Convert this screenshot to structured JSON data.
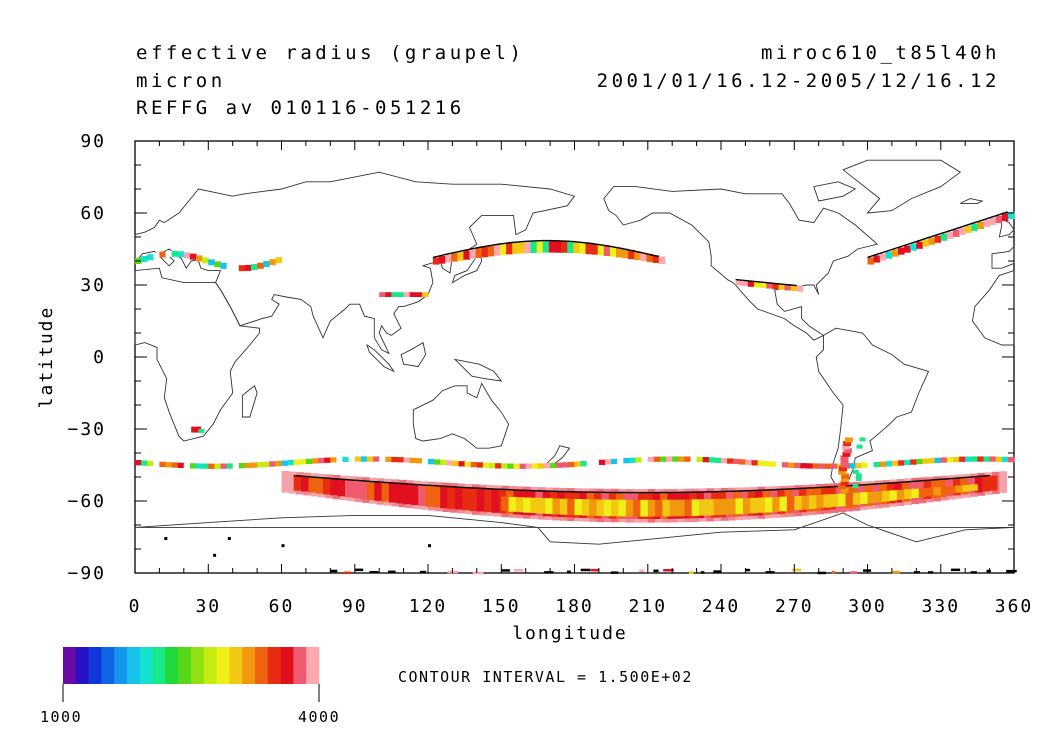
{
  "header": {
    "left": [
      "effective radius (graupel)",
      "micron",
      "REFFG av 010116-051216"
    ],
    "right": [
      "miroc610_t85l40h",
      "2001/01/16.12-2005/12/16.12"
    ]
  },
  "chart_data": {
    "type": "heatmap",
    "projection": "cylindrical equidistant",
    "xlabel": "longitude",
    "ylabel": "latitude",
    "xlim": [
      0,
      360
    ],
    "ylim": [
      -90,
      90
    ],
    "xticks": [
      0,
      30,
      60,
      90,
      120,
      150,
      180,
      210,
      240,
      270,
      300,
      330,
      360
    ],
    "yticks": [
      -90,
      -60,
      -30,
      0,
      30,
      60,
      90
    ],
    "contour_interval": "CONTOUR INTERVAL = 1.500E+02",
    "colorbar": {
      "min_label": "1000",
      "max_label": "4000",
      "colors": [
        "#6a0aa6",
        "#2a12c4",
        "#1035d8",
        "#1065e6",
        "#1495ee",
        "#18c2ee",
        "#14e2cf",
        "#18e88a",
        "#20d83a",
        "#56d818",
        "#90e014",
        "#c4ec10",
        "#f0f018",
        "#f2c812",
        "#f2980e",
        "#ee6210",
        "#e82c12",
        "#e01020",
        "#f05a6e",
        "#ffa8b0"
      ]
    },
    "regions": [
      {
        "name": "southern-ocean-main-band",
        "level": "high",
        "lon": [
          60,
          355
        ],
        "lat": [
          -66,
          -40
        ]
      },
      {
        "name": "southern-ocean-edge-fringe",
        "level": "mixed",
        "lon": [
          0,
          360
        ],
        "lat": [
          -48,
          -41
        ]
      },
      {
        "name": "north-pacific-storm-track",
        "level": "high",
        "lon": [
          120,
          215
        ],
        "lat": [
          37,
          47
        ]
      },
      {
        "name": "north-atlantic-band",
        "level": "high",
        "lon": [
          300,
          358
        ],
        "lat": [
          38,
          58
        ]
      },
      {
        "name": "mediterranean-patches",
        "level": "mixed",
        "lon": [
          0,
          60
        ],
        "lat": [
          32,
          46
        ]
      },
      {
        "name": "gulf-of-mexico-coast",
        "level": "mixed",
        "lon": [
          240,
          270
        ],
        "lat": [
          27,
          35
        ]
      },
      {
        "name": "patagonia-andes",
        "level": "high",
        "lon": [
          280,
          300
        ],
        "lat": [
          -56,
          -36
        ]
      },
      {
        "name": "antarctic-coast-specks",
        "level": "low",
        "lon": [
          0,
          360
        ],
        "lat": [
          -90,
          -70
        ]
      }
    ]
  }
}
